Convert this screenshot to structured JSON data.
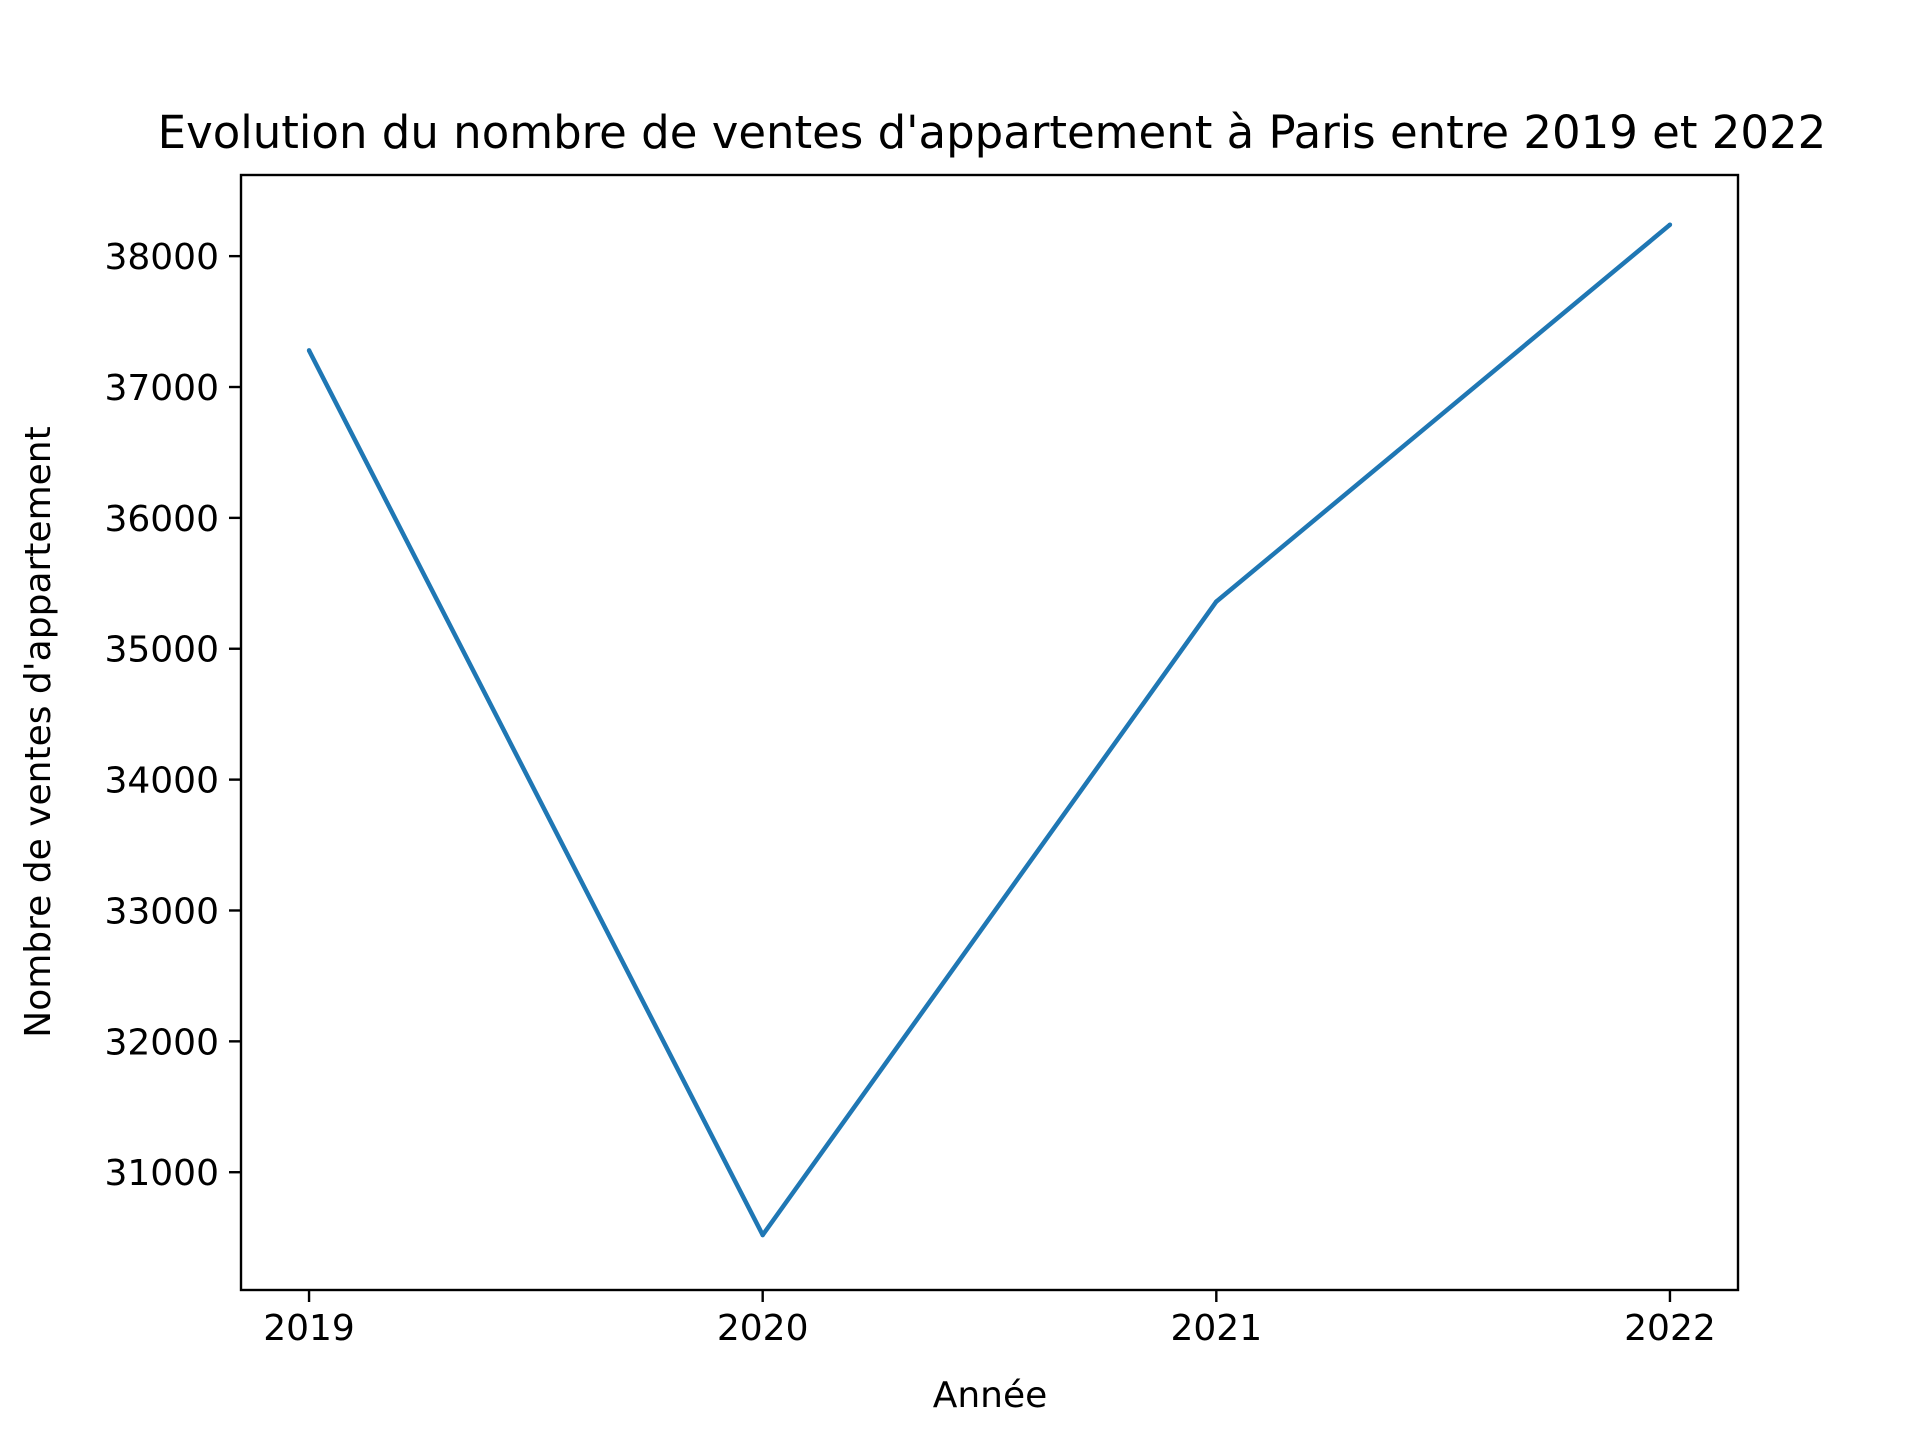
{
  "chart_data": {
    "type": "line",
    "title": "Evolution du nombre de ventes d'appartement à Paris entre 2019 et 2022",
    "xlabel": "Année",
    "ylabel": "Nombre de ventes d'appartement",
    "x": [
      2019,
      2020,
      2021,
      2022
    ],
    "x_tick_labels": [
      "2019",
      "2020",
      "2021",
      "2022"
    ],
    "y_ticks": [
      31000,
      32000,
      33000,
      34000,
      35000,
      36000,
      37000,
      38000
    ],
    "y_tick_labels": [
      "31000",
      "32000",
      "33000",
      "34000",
      "35000",
      "36000",
      "37000",
      "38000"
    ],
    "series": [
      {
        "values": [
          37280,
          30520,
          35360,
          38240
        ],
        "color": "#1f77b4"
      }
    ],
    "xlim": [
      2018.85,
      2022.15
    ],
    "ylim": [
      30100,
      38620
    ],
    "grid": false,
    "legend": "none"
  }
}
